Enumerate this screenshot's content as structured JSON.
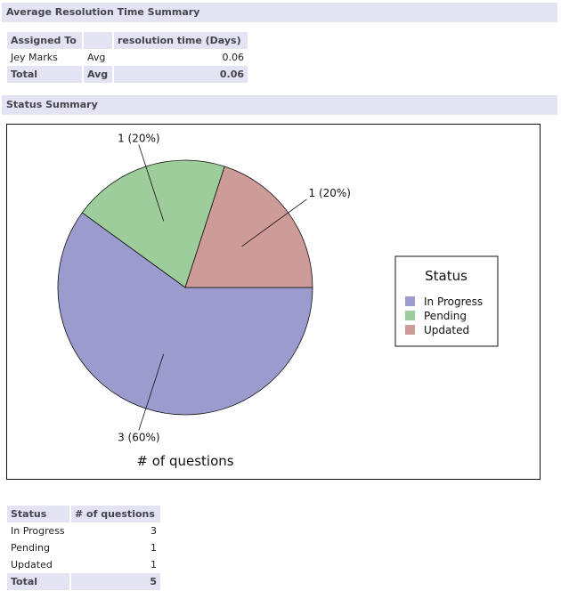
{
  "resolution": {
    "header": "Average Resolution Time Summary",
    "columns": [
      "Assigned To",
      "",
      "resolution time (Days)"
    ],
    "rows": [
      {
        "assigned": "Jey Marks",
        "stat": "Avg",
        "value": "0.06"
      }
    ],
    "total": {
      "label": "Total",
      "stat": "Avg",
      "value": "0.06"
    }
  },
  "status": {
    "header": "Status Summary",
    "columns": [
      "Status",
      "# of questions"
    ],
    "rows": [
      {
        "status": "In Progress",
        "count": "3"
      },
      {
        "status": "Pending",
        "count": "1"
      },
      {
        "status": "Updated",
        "count": "1"
      }
    ],
    "total": {
      "label": "Total",
      "count": "5"
    }
  },
  "chart_data": {
    "type": "pie",
    "title": "# of questions",
    "legend_title": "Status",
    "legend_position": "right",
    "slices": [
      {
        "label": "In Progress",
        "value": 3,
        "data_label": "3 (60%)",
        "color": "#9b9bcd"
      },
      {
        "label": "Pending",
        "value": 1,
        "data_label": "1 (20%)",
        "color": "#9dcd9b"
      },
      {
        "label": "Updated",
        "value": 1,
        "data_label": "1 (20%)",
        "color": "#cd9b98"
      }
    ]
  }
}
